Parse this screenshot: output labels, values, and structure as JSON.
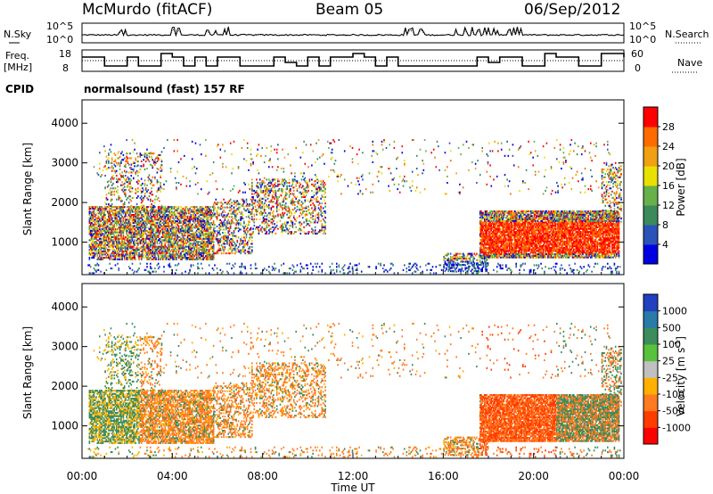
{
  "header": {
    "station": "McMurdo (fitACF)",
    "beam": "Beam 05",
    "date": "06/Sep/2012"
  },
  "noise_panel": {
    "left_label": "N.Sky",
    "right_label": "N.Search",
    "left_ticks": [
      "10^5",
      "10^0"
    ],
    "right_ticks": [
      "10^5",
      "10^0"
    ]
  },
  "freq_panel": {
    "left_label_1": "Freq.",
    "left_label_2": "[MHz]",
    "right_label": "Nave",
    "left_ticks": [
      "18",
      "8"
    ],
    "right_ticks": [
      "60",
      "0"
    ]
  },
  "cpid": {
    "label": "CPID",
    "value": "normalsound (fast) 157 RF"
  },
  "colors": {
    "power": [
      "#0000e0",
      "#2a52b8",
      "#3a8a5c",
      "#68b04a",
      "#e8e000",
      "#f0a010",
      "#ff6a00",
      "#ff0000"
    ],
    "velocity": [
      "#ff0000",
      "#ff3c00",
      "#ff7a20",
      "#ffb000",
      "#c0c0c0",
      "#58c23a",
      "#3c8c5c",
      "#2a7aa8",
      "#2040c0"
    ]
  },
  "chart_data": [
    {
      "type": "heatmap",
      "parameter": "power",
      "ylabel": "Slant Range [km]",
      "yticks": [
        "4000",
        "3000",
        "2000",
        "1000"
      ],
      "ylim": [
        180,
        4590
      ],
      "xlim_hours": [
        0,
        24
      ],
      "colorbar": {
        "label": "Power [dB]",
        "tick_labels": [
          "28",
          "24",
          "20",
          "16",
          "12",
          "8",
          "4"
        ]
      }
    },
    {
      "type": "heatmap",
      "parameter": "velocity",
      "ylabel": "Slant Range [km]",
      "yticks": [
        "4000",
        "3000",
        "2000",
        "1000"
      ],
      "ylim": [
        180,
        4590
      ],
      "xlim_hours": [
        0,
        24
      ],
      "xlabel": "Time UT",
      "xticks": [
        "00:00",
        "04:00",
        "08:00",
        "12:00",
        "16:00",
        "20:00",
        "00:00"
      ],
      "colorbar": {
        "label_main": "Velocity  [m s",
        "label_sup": "-1",
        "label_end": "]",
        "tick_labels": [
          "1000",
          "500",
          "100",
          "25",
          "-25",
          "-100",
          "-500",
          "-1000"
        ]
      }
    }
  ]
}
